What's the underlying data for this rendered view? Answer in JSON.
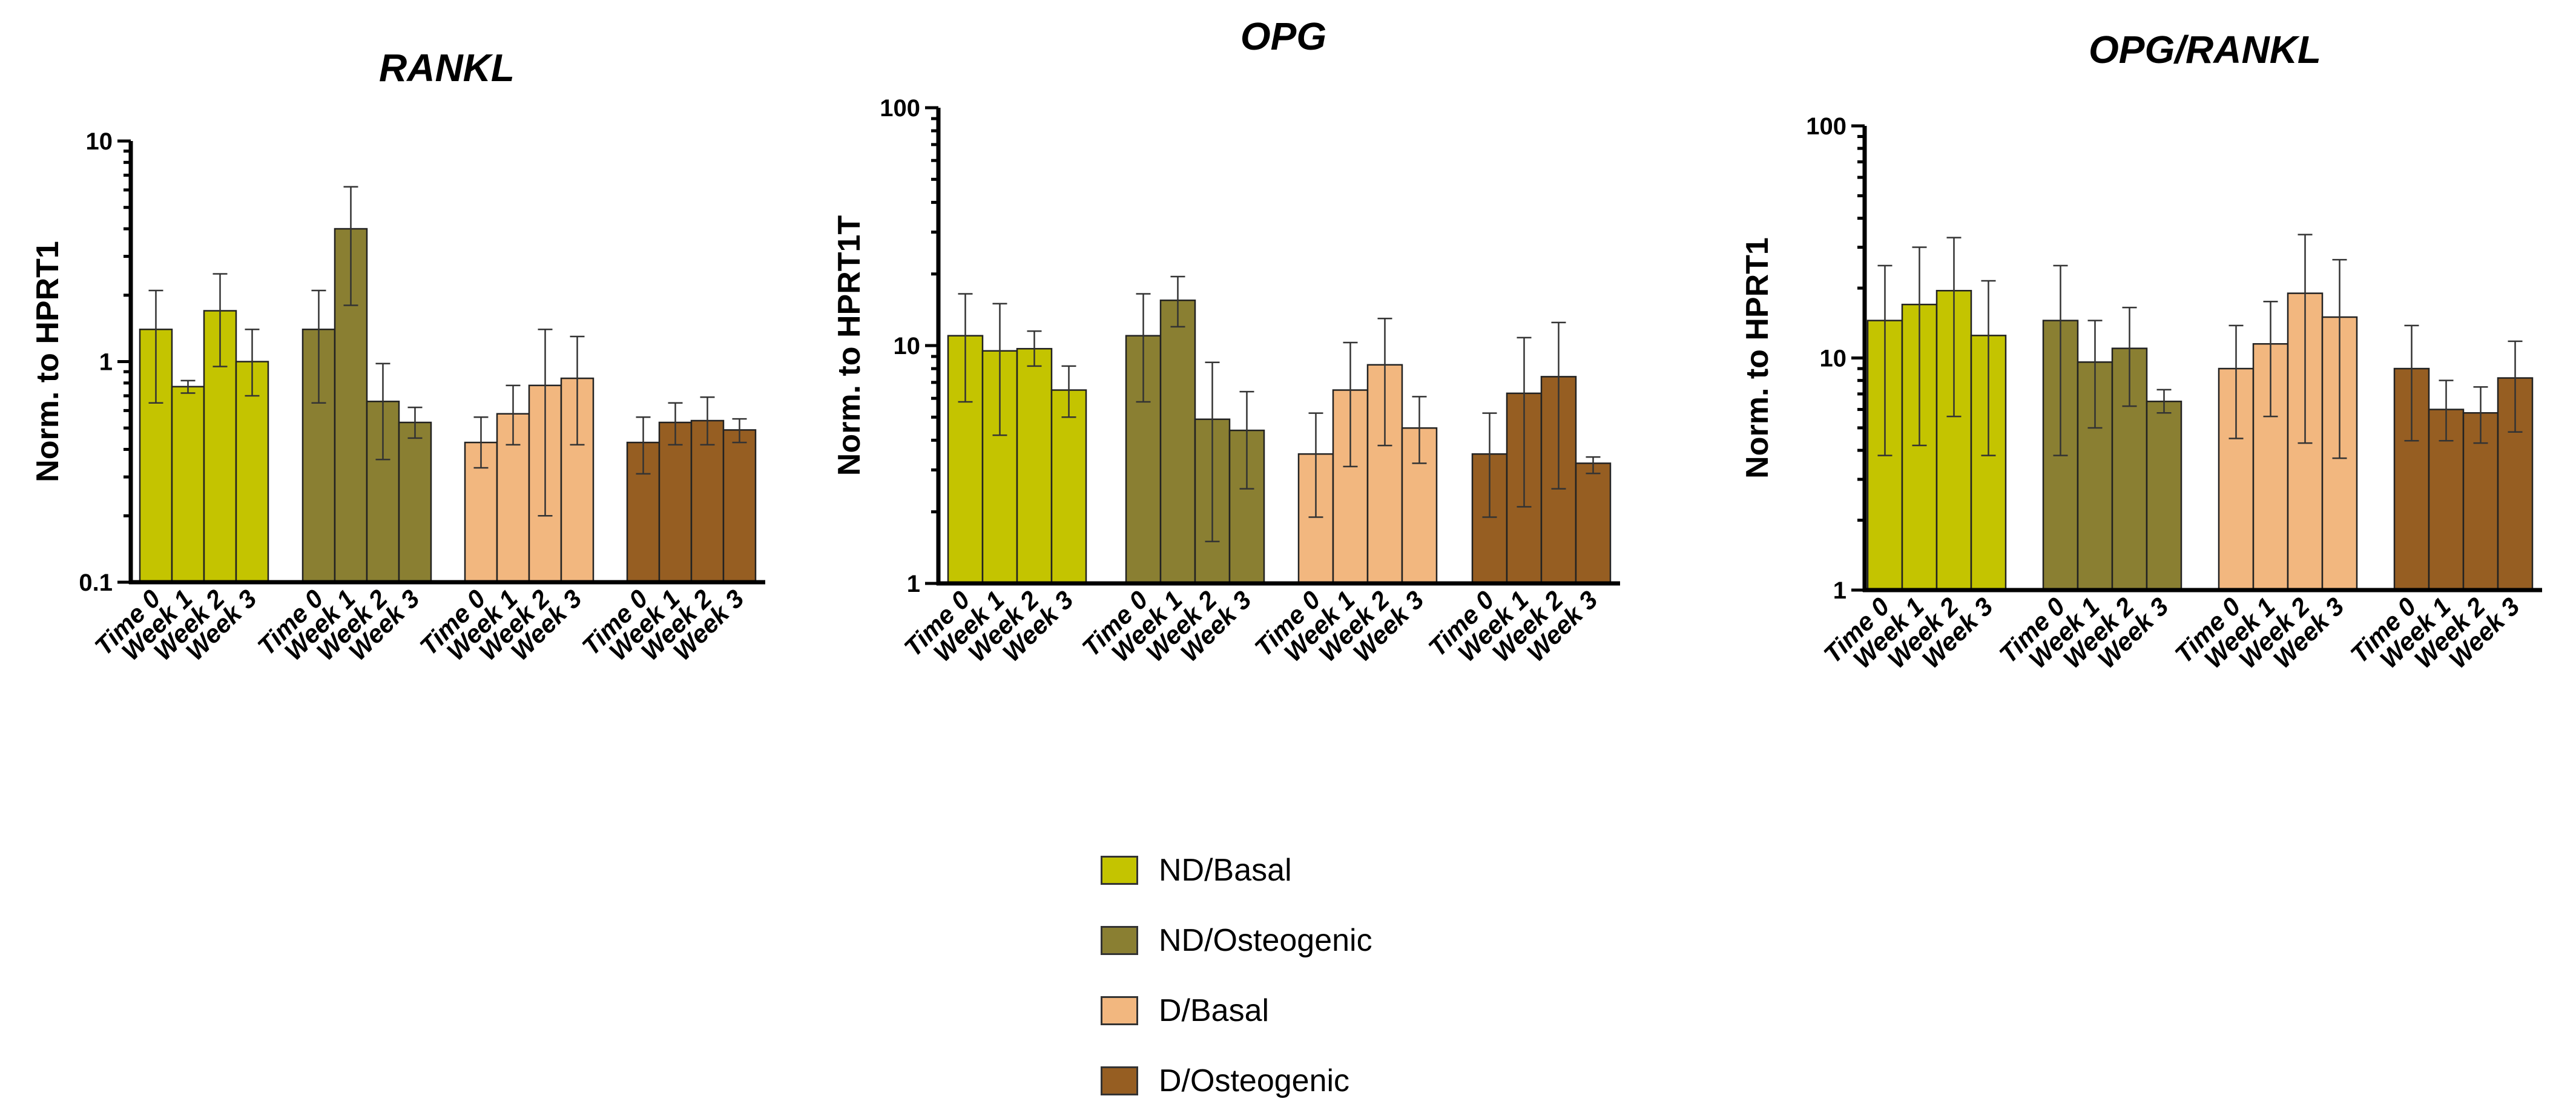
{
  "legend": [
    {
      "label": "ND/Basal",
      "color": "#c4c400"
    },
    {
      "label": "ND/Osteogenic",
      "color": "#8a7f32"
    },
    {
      "label": "D/Basal",
      "color": "#f2b77f"
    },
    {
      "label": "D/Osteogenic",
      "color": "#965e22"
    }
  ],
  "chart_data": [
    {
      "type": "bar",
      "title": "RANKL",
      "ylabel": "Norm. to HPRT1",
      "yscale": "log",
      "ylim": [
        0.1,
        10
      ],
      "yticks": [
        {
          "value": 0.1,
          "label": "0.1"
        },
        {
          "value": 1,
          "label": "1"
        },
        {
          "value": 10,
          "label": "10"
        }
      ],
      "categories": [
        "Time 0",
        "Week 1",
        "Week 2",
        "Week 3"
      ],
      "grid": false,
      "series": [
        {
          "name": "ND/Basal",
          "values": [
            1.4,
            0.77,
            1.7,
            1.0
          ],
          "err_low": [
            0.65,
            0.72,
            0.95,
            0.7
          ],
          "err_high": [
            2.1,
            0.82,
            2.5,
            1.4
          ]
        },
        {
          "name": "ND/Osteogenic",
          "values": [
            1.4,
            4.0,
            0.66,
            0.53
          ],
          "err_low": [
            0.65,
            1.8,
            0.36,
            0.45
          ],
          "err_high": [
            2.1,
            6.2,
            0.98,
            0.62
          ]
        },
        {
          "name": "D/Basal",
          "values": [
            0.43,
            0.58,
            0.78,
            0.84
          ],
          "err_low": [
            0.33,
            0.42,
            0.2,
            0.42
          ],
          "err_high": [
            0.56,
            0.78,
            1.4,
            1.3
          ]
        },
        {
          "name": "D/Osteogenic",
          "values": [
            0.43,
            0.53,
            0.54,
            0.49
          ],
          "err_low": [
            0.31,
            0.42,
            0.42,
            0.43
          ],
          "err_high": [
            0.56,
            0.65,
            0.69,
            0.55
          ]
        }
      ]
    },
    {
      "type": "bar",
      "title": "OPG",
      "ylabel": "Norm. to HPRT1T",
      "yscale": "log",
      "ylim": [
        1,
        100
      ],
      "yticks": [
        {
          "value": 1,
          "label": "1"
        },
        {
          "value": 10,
          "label": "10"
        },
        {
          "value": 100,
          "label": "100"
        }
      ],
      "categories": [
        "Time 0",
        "Week 1",
        "Week 2",
        "Week 3"
      ],
      "grid": false,
      "series": [
        {
          "name": "ND/Basal",
          "values": [
            11.0,
            9.5,
            9.7,
            6.5
          ],
          "err_low": [
            5.8,
            4.2,
            8.2,
            5.0
          ],
          "err_high": [
            16.5,
            15.0,
            11.5,
            8.2
          ]
        },
        {
          "name": "ND/Osteogenic",
          "values": [
            11.0,
            15.5,
            4.9,
            4.4
          ],
          "err_low": [
            5.8,
            12.0,
            1.5,
            2.5
          ],
          "err_high": [
            16.5,
            19.5,
            8.5,
            6.4
          ]
        },
        {
          "name": "D/Basal",
          "values": [
            3.5,
            6.5,
            8.3,
            4.5
          ],
          "err_low": [
            1.9,
            3.1,
            3.8,
            3.2
          ],
          "err_high": [
            5.2,
            10.3,
            13.0,
            6.1
          ]
        },
        {
          "name": "D/Osteogenic",
          "values": [
            3.5,
            6.3,
            7.4,
            3.2
          ],
          "err_low": [
            1.9,
            2.1,
            2.5,
            2.9
          ],
          "err_high": [
            5.2,
            10.8,
            12.5,
            3.4
          ]
        }
      ]
    },
    {
      "type": "bar",
      "title": "OPG/RANKL",
      "ylabel": "Norm. to HPRT1",
      "yscale": "log",
      "ylim": [
        1,
        100
      ],
      "yticks": [
        {
          "value": 1,
          "label": "1"
        },
        {
          "value": 10,
          "label": "10"
        },
        {
          "value": 100,
          "label": "100"
        }
      ],
      "categories": [
        "Time 0",
        "Week 1",
        "Week 2",
        "Week 3"
      ],
      "grid": false,
      "series": [
        {
          "name": "ND/Basal",
          "values": [
            14.5,
            17.0,
            19.5,
            12.5
          ],
          "err_low": [
            3.8,
            4.2,
            5.6,
            3.8
          ],
          "err_high": [
            25.0,
            30.0,
            33.0,
            21.5
          ]
        },
        {
          "name": "ND/Osteogenic",
          "values": [
            14.5,
            9.6,
            11.0,
            6.5
          ],
          "err_low": [
            3.8,
            5.0,
            6.2,
            5.8
          ],
          "err_high": [
            25.0,
            14.5,
            16.5,
            7.3
          ]
        },
        {
          "name": "D/Basal",
          "values": [
            9.0,
            11.5,
            19.0,
            15.0
          ],
          "err_low": [
            4.5,
            5.6,
            4.3,
            3.7
          ],
          "err_high": [
            13.8,
            17.5,
            34.0,
            26.5
          ]
        },
        {
          "name": "D/Osteogenic",
          "values": [
            9.0,
            6.0,
            5.8,
            8.2
          ],
          "err_low": [
            4.4,
            4.4,
            4.3,
            4.8
          ],
          "err_high": [
            13.8,
            8.0,
            7.5,
            11.8
          ]
        }
      ]
    }
  ]
}
